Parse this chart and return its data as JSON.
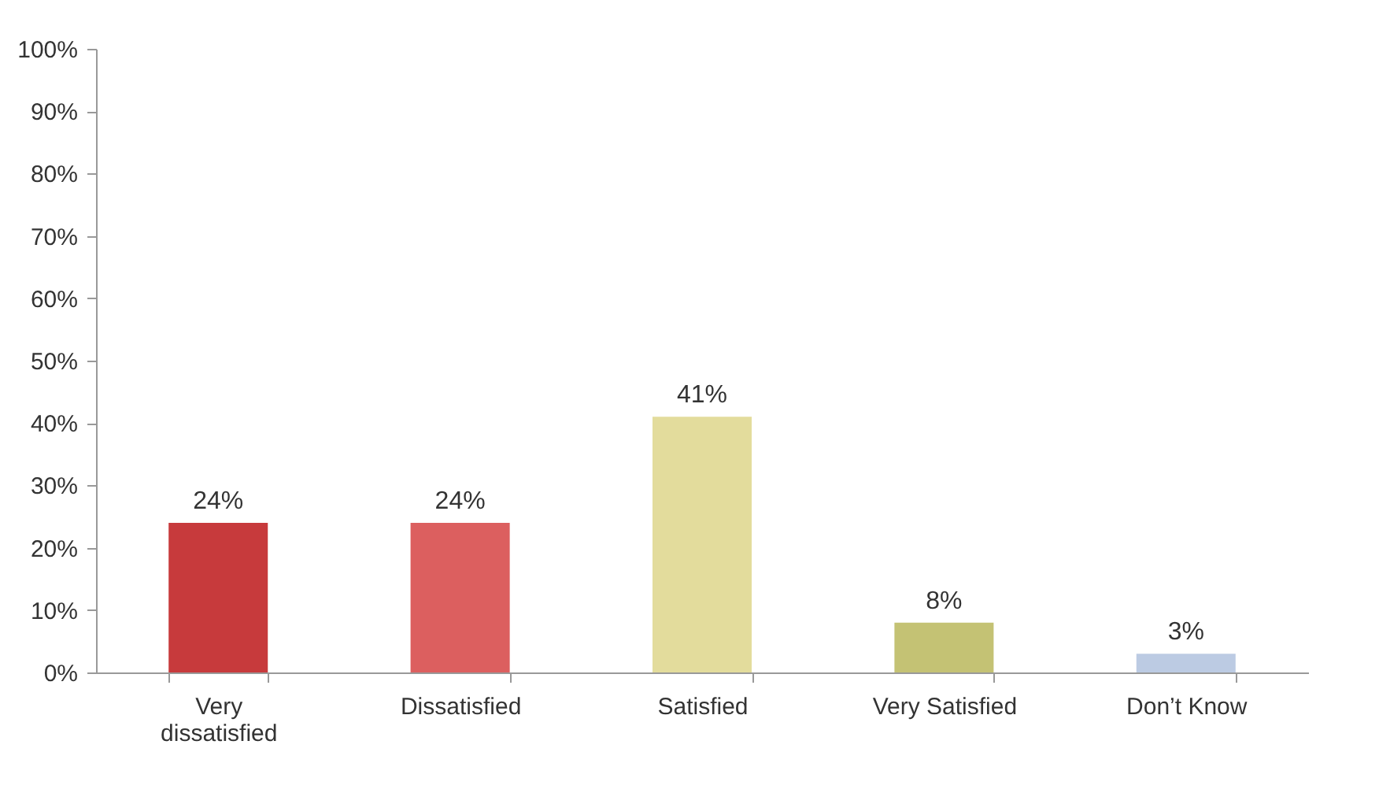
{
  "chart_data": {
    "type": "bar",
    "categories": [
      "Very dissatisfied",
      "Dissatisfied",
      "Satisfied",
      "Very Satisfied",
      "Don’t Know"
    ],
    "values": [
      24,
      24,
      41,
      8,
      3
    ],
    "colors": [
      "#c73a3c",
      "#dc5f5f",
      "#e3dc9c",
      "#c4c274",
      "#bccbe3"
    ],
    "value_labels": [
      "24%",
      "24%",
      "41%",
      "8%",
      "3%"
    ],
    "ylim": [
      0,
      100
    ],
    "yticks": [
      {
        "value": 0,
        "label": "0%"
      },
      {
        "value": 10,
        "label": "10%"
      },
      {
        "value": 20,
        "label": "20%"
      },
      {
        "value": 30,
        "label": "30%"
      },
      {
        "value": 40,
        "label": "40%"
      },
      {
        "value": 50,
        "label": "50%"
      },
      {
        "value": 60,
        "label": "60%"
      },
      {
        "value": 70,
        "label": "70%"
      },
      {
        "value": 80,
        "label": "80%"
      },
      {
        "value": 90,
        "label": "90%"
      },
      {
        "value": 100,
        "label": "100%"
      }
    ],
    "grid": false,
    "legend": false
  }
}
